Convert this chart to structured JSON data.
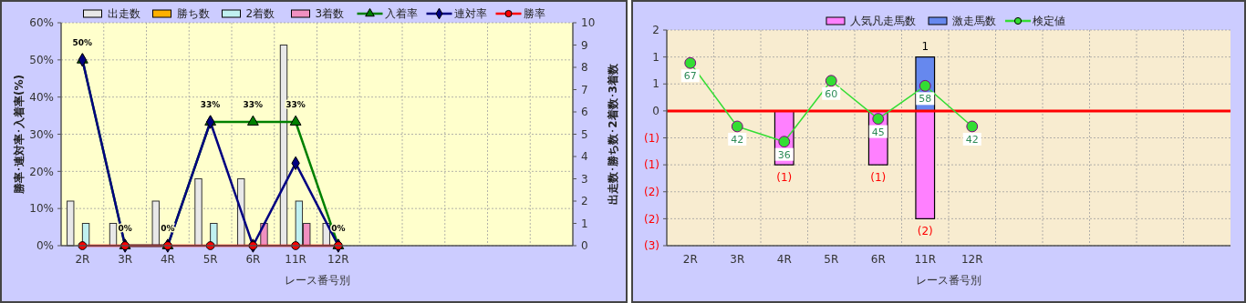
{
  "chart_data": [
    {
      "type": "bar",
      "xlabel": "レース番号別",
      "ylabel": "勝率･連対率･入着率(%)",
      "y2label": "出走数･勝ち数･2着数･3着数",
      "categories": [
        "2R",
        "3R",
        "4R",
        "5R",
        "6R",
        "11R",
        "12R",
        null,
        null,
        null,
        null,
        null
      ],
      "ylim": [
        0,
        60
      ],
      "yticks": [
        {
          "value": 0,
          "label": "0%"
        },
        {
          "value": 10,
          "label": "10%"
        },
        {
          "value": 20,
          "label": "20%"
        },
        {
          "value": 30,
          "label": "30%"
        },
        {
          "value": 40,
          "label": "40%"
        },
        {
          "value": 50,
          "label": "50%"
        },
        {
          "value": 60,
          "label": "60%"
        }
      ],
      "y2lim": [
        0,
        10
      ],
      "y2ticks": [
        0,
        1,
        2,
        3,
        4,
        5,
        6,
        7,
        8,
        9,
        10
      ],
      "grid": true,
      "legend": "top",
      "series": [
        {
          "name": "出走数",
          "axis": "y2",
          "color": "#e8e8e8",
          "values": [
            2,
            1,
            2,
            3,
            3,
            9,
            1,
            null,
            null,
            null,
            null,
            null
          ]
        },
        {
          "name": "勝ち数",
          "axis": "y2",
          "color": "#ffb000",
          "values": [
            0,
            0,
            0,
            0,
            0,
            0,
            0,
            null,
            null,
            null,
            null,
            null
          ]
        },
        {
          "name": "2着数",
          "axis": "y2",
          "color": "#c0f0f0",
          "values": [
            1,
            0,
            0,
            1,
            0,
            2,
            0,
            null,
            null,
            null,
            null,
            null
          ]
        },
        {
          "name": "3着数",
          "axis": "y2",
          "color": "#f090c0",
          "values": [
            0,
            0,
            0,
            0,
            1,
            1,
            0,
            null,
            null,
            null,
            null,
            null
          ]
        },
        {
          "name": "入着率",
          "type": "line",
          "color": "#008000",
          "marker": "triangle",
          "values": [
            50,
            0,
            0,
            33.3,
            33.3,
            33.3,
            0,
            null,
            null,
            null,
            null,
            null
          ],
          "value_labels": [
            "50%",
            "0%",
            "0%",
            "33%",
            "33%",
            "33%",
            "0%",
            null,
            null,
            null,
            null,
            null
          ]
        },
        {
          "name": "連対率",
          "type": "line",
          "color": "#000080",
          "marker": "diamond",
          "values": [
            50,
            0,
            0,
            33.3,
            0,
            22.2,
            0,
            null,
            null,
            null,
            null,
            null
          ]
        },
        {
          "name": "勝率",
          "type": "line",
          "color": "#ff0000",
          "marker": "circle",
          "values": [
            0,
            0,
            0,
            0,
            0,
            0,
            0,
            null,
            null,
            null,
            null,
            null
          ]
        }
      ]
    },
    {
      "type": "bar",
      "xlabel": "レース番号別",
      "categories": [
        "2R",
        "3R",
        "4R",
        "5R",
        "6R",
        "11R",
        "12R",
        null,
        null,
        null,
        null,
        null
      ],
      "ylim": [
        -2.5,
        1.5
      ],
      "yticks": [
        {
          "value": -2.5,
          "label": "(3)"
        },
        {
          "value": -2,
          "label": "(2)"
        },
        {
          "value": -1.5,
          "label": "(2)"
        },
        {
          "value": -1,
          "label": "(1)"
        },
        {
          "value": -0.5,
          "label": "(1)"
        },
        {
          "value": 0,
          "label": "0"
        },
        {
          "value": 0.5,
          "label": "1"
        },
        {
          "value": 1,
          "label": "1"
        },
        {
          "value": 1.5,
          "label": "2"
        }
      ],
      "y2lim": [
        -5,
        80
      ],
      "grid": true,
      "legend": "top",
      "stacked": true,
      "ref_lines": [
        {
          "axis": "y",
          "value": 0,
          "color": "#ff0000"
        }
      ],
      "series": [
        {
          "name": "人気凡走馬数",
          "color": "#ff80ff",
          "values": [
            0,
            0,
            -1,
            0,
            -1,
            -2,
            0,
            null,
            null,
            null,
            null,
            null
          ],
          "value_labels": [
            null,
            null,
            "(1)",
            null,
            "(1)",
            "(2)",
            null,
            null,
            null,
            null,
            null,
            null
          ]
        },
        {
          "name": "激走馬数",
          "color": "#6688ee",
          "values": [
            0,
            0,
            0,
            0,
            0,
            1,
            0,
            null,
            null,
            null,
            null,
            null
          ],
          "value_labels": [
            null,
            null,
            null,
            null,
            null,
            "1",
            null,
            null,
            null,
            null,
            null,
            null
          ]
        },
        {
          "name": "検定値",
          "type": "line",
          "axis": "y2",
          "color": "#33dd33",
          "marker": "circle",
          "data_labels": true,
          "values": [
            67,
            42,
            36,
            60,
            45,
            58,
            42,
            null,
            null,
            null,
            null,
            null
          ]
        }
      ]
    }
  ]
}
